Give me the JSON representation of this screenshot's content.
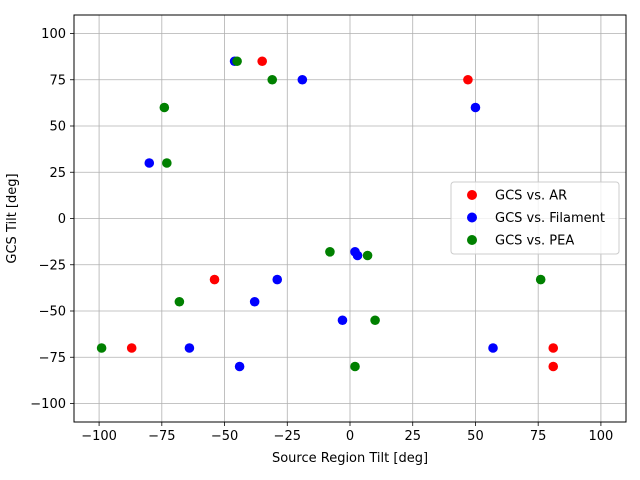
{
  "chart_data": {
    "type": "scatter",
    "title": "",
    "xlabel": "Source Region Tilt [deg]",
    "ylabel": "GCS Tilt [deg]",
    "xlim": [
      -110,
      110
    ],
    "ylim": [
      -110,
      110
    ],
    "xticks": [
      -100,
      -75,
      -50,
      -25,
      0,
      25,
      50,
      75,
      100
    ],
    "yticks": [
      -100,
      -75,
      -50,
      -25,
      0,
      25,
      50,
      75,
      100
    ],
    "grid": true,
    "legend_position": "center-right",
    "series": [
      {
        "name": "GCS vs. AR",
        "color": "#ff0000",
        "points": [
          [
            -35,
            85
          ],
          [
            47,
            75
          ],
          [
            -54,
            -33
          ],
          [
            -87,
            -70
          ],
          [
            81,
            -70
          ],
          [
            81,
            -80
          ]
        ]
      },
      {
        "name": "GCS vs. Filament",
        "color": "#0000ff",
        "points": [
          [
            -46,
            85
          ],
          [
            -19,
            75
          ],
          [
            50,
            60
          ],
          [
            -80,
            30
          ],
          [
            2,
            -18
          ],
          [
            3,
            -20
          ],
          [
            -29,
            -33
          ],
          [
            -38,
            -45
          ],
          [
            -3,
            -55
          ],
          [
            -64,
            -70
          ],
          [
            57,
            -70
          ],
          [
            -44,
            -80
          ]
        ]
      },
      {
        "name": "GCS vs. PEA",
        "color": "#008000",
        "points": [
          [
            -45,
            85
          ],
          [
            -31,
            75
          ],
          [
            -74,
            60
          ],
          [
            -73,
            30
          ],
          [
            -8,
            -18
          ],
          [
            7,
            -20
          ],
          [
            76,
            -33
          ],
          [
            -68,
            -45
          ],
          [
            10,
            -55
          ],
          [
            -99,
            -70
          ],
          [
            2,
            -80
          ]
        ]
      }
    ]
  }
}
